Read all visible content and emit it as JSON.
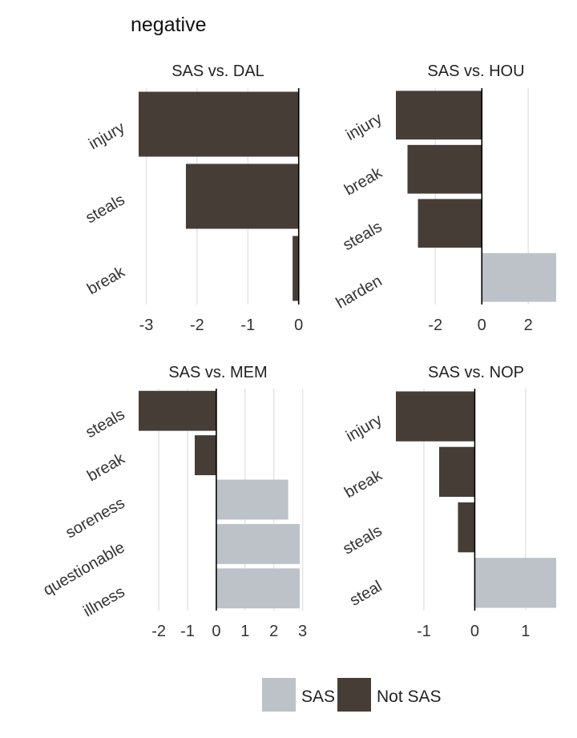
{
  "page_title": "negative",
  "colors": {
    "sas": "#bcc2c8",
    "not_sas": "#463d37"
  },
  "legend": {
    "sas_label": "SAS",
    "not_sas_label": "Not SAS"
  },
  "chart_data": [
    {
      "type": "bar",
      "orientation": "horizontal",
      "title": "SAS vs. DAL",
      "categories": [
        "injury",
        "steals",
        "break"
      ],
      "values": [
        -3.15,
        -2.22,
        -0.12
      ],
      "groups": [
        "Not SAS",
        "Not SAS",
        "Not SAS"
      ],
      "xlim": [
        -3.15,
        0.02
      ],
      "xticks": [
        -3,
        -2,
        -1,
        0
      ]
    },
    {
      "type": "bar",
      "orientation": "horizontal",
      "title": "SAS vs. HOU",
      "categories": [
        "injury",
        "break",
        "steals",
        "harden"
      ],
      "values": [
        -3.7,
        -3.2,
        -2.75,
        3.2
      ],
      "groups": [
        "Not SAS",
        "Not SAS",
        "Not SAS",
        "SAS"
      ],
      "xlim": [
        -3.7,
        3.2
      ],
      "xticks": [
        -2,
        0,
        2
      ]
    },
    {
      "type": "bar",
      "orientation": "horizontal",
      "title": "SAS vs. MEM",
      "categories": [
        "steals",
        "break",
        "soreness",
        "questionable",
        "illness"
      ],
      "values": [
        -2.7,
        -0.75,
        2.5,
        2.9,
        2.9
      ],
      "groups": [
        "Not SAS",
        "Not SAS",
        "SAS",
        "SAS",
        "SAS"
      ],
      "xlim": [
        -2.7,
        2.9
      ],
      "xticks": [
        -2,
        -1,
        0,
        1,
        2,
        3
      ]
    },
    {
      "type": "bar",
      "orientation": "horizontal",
      "title": "SAS vs. NOP",
      "categories": [
        "injury",
        "break",
        "steals",
        "steal"
      ],
      "values": [
        -1.55,
        -0.7,
        -0.33,
        1.6
      ],
      "groups": [
        "Not SAS",
        "Not SAS",
        "Not SAS",
        "SAS"
      ],
      "xlim": [
        -1.55,
        1.6
      ],
      "xticks": [
        -1,
        0,
        1
      ]
    }
  ]
}
